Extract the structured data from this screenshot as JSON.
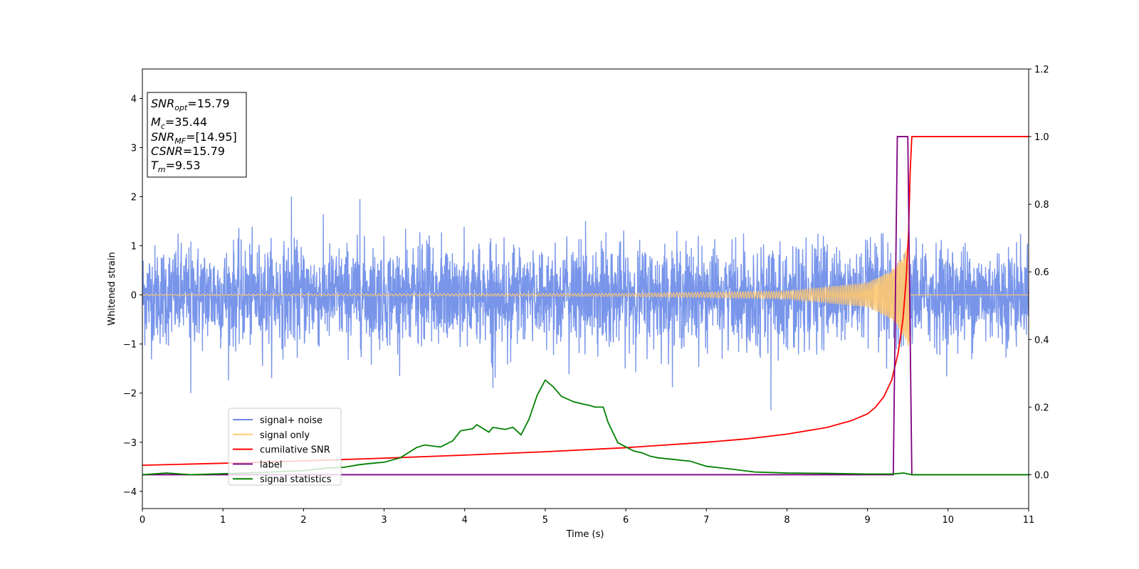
{
  "chart_data": {
    "type": "line",
    "xlabel": "Time (s)",
    "ylabel": "Whitened strain",
    "xlim": [
      0,
      11
    ],
    "ylim_left": [
      -4.35,
      4.6
    ],
    "ylim_right": [
      -0.1,
      1.2
    ],
    "x_ticks": [
      0,
      1,
      2,
      3,
      4,
      5,
      6,
      7,
      8,
      9,
      10,
      11
    ],
    "x_tick_labels": [
      "0",
      "1",
      "2",
      "3",
      "4",
      "5",
      "6",
      "7",
      "8",
      "9",
      "10",
      "11"
    ],
    "y_left_ticks": [
      -4,
      -3,
      -2,
      -1,
      0,
      1,
      2,
      3,
      4
    ],
    "y_left_tick_labels": [
      "−4",
      "−3",
      "−2",
      "−1",
      "0",
      "1",
      "2",
      "3",
      "4"
    ],
    "y_right_ticks": [
      0.0,
      0.2,
      0.4,
      0.6,
      0.8,
      1.0,
      1.2
    ],
    "y_right_tick_labels": [
      "0.0",
      "0.2",
      "0.4",
      "0.6",
      "0.8",
      "1.0",
      "1.2"
    ],
    "legend_position": "lower-left",
    "annotation": {
      "lines": [
        {
          "base": "SNR",
          "sub": "opt",
          "rest": "=15.79"
        },
        {
          "base": "M",
          "sub": "c",
          "rest": "=35.44"
        },
        {
          "base": "SNR",
          "sub": "MF",
          "rest": "=[14.95]"
        },
        {
          "base": "CSNR",
          "sub": "",
          "rest": "=15.79"
        },
        {
          "base": "T",
          "sub": "m",
          "rest": "=9.53"
        }
      ]
    },
    "series": [
      {
        "name": "signal+ noise",
        "axis": "left",
        "color": "#6d8ce8",
        "kind": "noise",
        "sigma": 0.5,
        "peak_envelope": [
          [
            0,
            1.5
          ],
          [
            1.85,
            2.0
          ],
          [
            2.7,
            1.95
          ],
          [
            5.5,
            1.5
          ],
          [
            11,
            1.4
          ]
        ],
        "trough_envelope": [
          [
            0,
            -1.4
          ],
          [
            0.6,
            -2.0
          ],
          [
            4.35,
            -1.9
          ],
          [
            7.8,
            -2.35
          ],
          [
            11,
            -1.95
          ]
        ]
      },
      {
        "name": "signal only",
        "axis": "left",
        "color": "#ffc870",
        "kind": "chirp",
        "t_merger": 9.53,
        "amplitude_points": [
          [
            0,
            0.01
          ],
          [
            6.0,
            0.03
          ],
          [
            8.0,
            0.08
          ],
          [
            9.0,
            0.25
          ],
          [
            9.3,
            0.5
          ],
          [
            9.45,
            0.85
          ],
          [
            9.52,
            1.1
          ],
          [
            9.53,
            0
          ]
        ]
      },
      {
        "name": "cumilative SNR",
        "axis": "right",
        "color": "#ff0000",
        "x": [
          0,
          1,
          2,
          3,
          4,
          5,
          6,
          7,
          7.5,
          8,
          8.5,
          8.8,
          9.0,
          9.1,
          9.2,
          9.3,
          9.38,
          9.44,
          9.48,
          9.51,
          9.53,
          9.55,
          11
        ],
        "values": [
          0.028,
          0.034,
          0.041,
          0.049,
          0.058,
          0.068,
          0.08,
          0.096,
          0.106,
          0.12,
          0.14,
          0.16,
          0.18,
          0.2,
          0.23,
          0.28,
          0.36,
          0.46,
          0.58,
          0.72,
          0.9,
          1.0,
          1.0
        ]
      },
      {
        "name": "label",
        "axis": "right",
        "color": "#800080",
        "x": [
          0,
          9.32,
          9.37,
          9.5,
          9.55,
          11
        ],
        "values": [
          0,
          0,
          1,
          1,
          0,
          0
        ]
      },
      {
        "name": "signal statistics",
        "axis": "right",
        "color": "#008000",
        "x": [
          0,
          0.3,
          0.6,
          1.0,
          1.5,
          2.0,
          2.3,
          2.5,
          2.7,
          2.9,
          3.0,
          3.2,
          3.4,
          3.5,
          3.7,
          3.85,
          3.95,
          4.1,
          4.15,
          4.3,
          4.35,
          4.5,
          4.6,
          4.7,
          4.8,
          4.9,
          5.0,
          5.1,
          5.2,
          5.35,
          5.45,
          5.55,
          5.62,
          5.72,
          5.78,
          5.9,
          6.1,
          6.2,
          6.3,
          6.4,
          6.6,
          6.8,
          7.0,
          7.3,
          7.6,
          8.0,
          8.5,
          9.0,
          9.3,
          9.45,
          9.55,
          11
        ],
        "values": [
          0.0,
          0.005,
          0.0,
          0.003,
          0.007,
          0.012,
          0.02,
          0.022,
          0.03,
          0.035,
          0.037,
          0.05,
          0.08,
          0.088,
          0.082,
          0.1,
          0.13,
          0.136,
          0.148,
          0.126,
          0.14,
          0.134,
          0.14,
          0.118,
          0.165,
          0.235,
          0.28,
          0.26,
          0.232,
          0.216,
          0.21,
          0.205,
          0.2,
          0.2,
          0.155,
          0.095,
          0.07,
          0.065,
          0.055,
          0.05,
          0.045,
          0.04,
          0.025,
          0.017,
          0.008,
          0.005,
          0.004,
          0.002,
          0.002,
          0.005,
          0.0,
          0.0
        ]
      }
    ]
  }
}
